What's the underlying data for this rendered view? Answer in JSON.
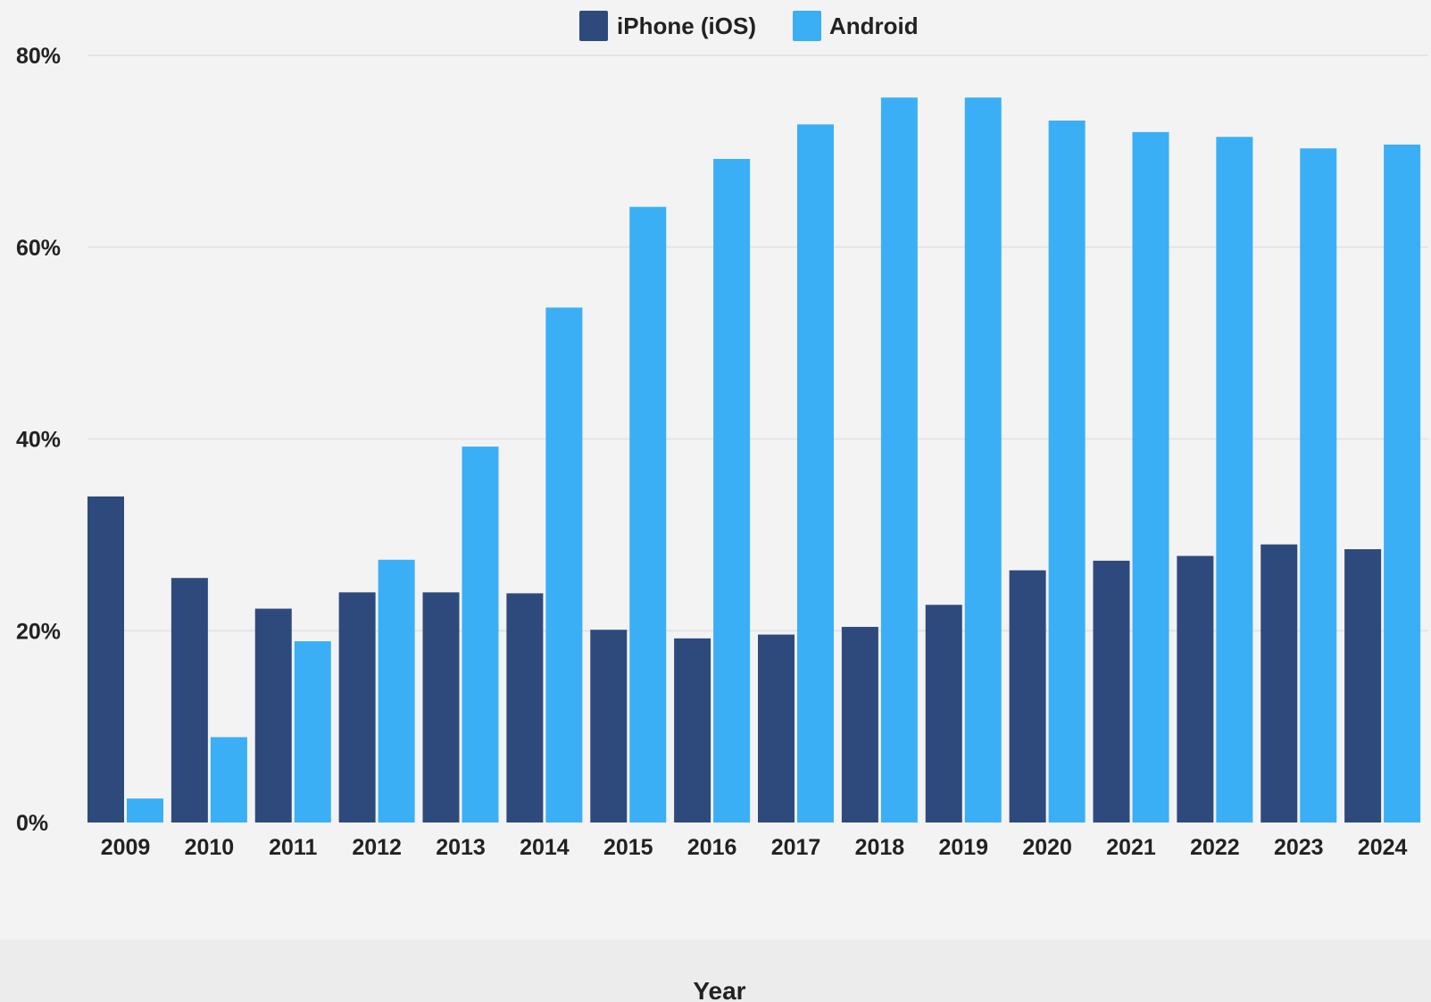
{
  "chart_data": {
    "type": "bar",
    "categories": [
      "2009",
      "2010",
      "2011",
      "2012",
      "2013",
      "2014",
      "2015",
      "2016",
      "2017",
      "2018",
      "2019",
      "2020",
      "2021",
      "2022",
      "2023",
      "2024"
    ],
    "series": [
      {
        "name": "iPhone (iOS)",
        "color": "#2e4a7d",
        "values": [
          34.0,
          25.5,
          22.3,
          24.0,
          24.0,
          23.9,
          20.1,
          19.2,
          19.6,
          20.4,
          22.7,
          26.3,
          27.3,
          27.8,
          29.0,
          28.5
        ]
      },
      {
        "name": "Android",
        "color": "#3aaff5",
        "values": [
          2.5,
          8.9,
          18.9,
          27.4,
          39.2,
          53.7,
          64.2,
          69.2,
          72.8,
          75.6,
          75.6,
          73.2,
          72.0,
          71.5,
          70.3,
          70.7
        ]
      }
    ],
    "y_ticks": [
      "0%",
      "20%",
      "40%",
      "60%",
      "80%"
    ],
    "y_tick_values": [
      0,
      20,
      40,
      60,
      80
    ],
    "ylim": [
      0,
      80
    ],
    "xlabel": "Year",
    "ylabel": "",
    "grid": true,
    "legend_position": "top-center"
  }
}
